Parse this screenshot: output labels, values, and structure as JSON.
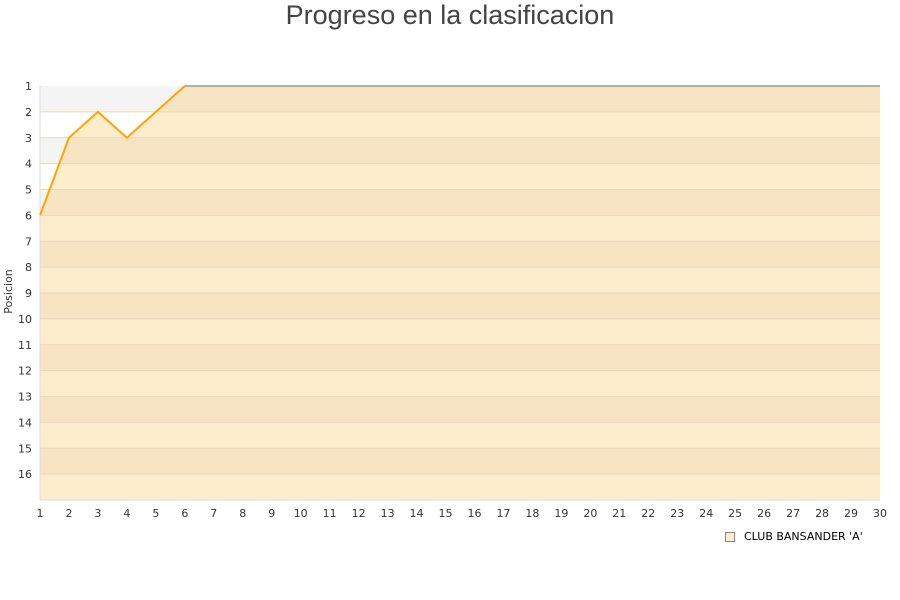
{
  "chart_data": {
    "type": "area",
    "title": "Progreso en la clasificacion",
    "ylabel": "Posicion",
    "xlabel": "",
    "x_ticks": [
      1,
      2,
      3,
      4,
      5,
      6,
      7,
      8,
      9,
      10,
      11,
      12,
      13,
      14,
      15,
      16,
      17,
      18,
      19,
      20,
      21,
      22,
      23,
      24,
      25,
      26,
      27,
      28,
      29,
      30
    ],
    "y_ticks": [
      1,
      2,
      3,
      4,
      5,
      6,
      7,
      8,
      9,
      10,
      11,
      12,
      13,
      14,
      15,
      16
    ],
    "ylim": [
      1,
      17
    ],
    "y_inverted": true,
    "xlim": [
      1,
      30
    ],
    "series": [
      {
        "name": "CLUB BANSANDER 'A'",
        "x": [
          1,
          2,
          3,
          4,
          5,
          6
        ],
        "y": [
          6,
          3,
          2,
          3,
          2,
          1
        ],
        "color": "#ffa500"
      }
    ],
    "legend_placement": "bottom-right",
    "colors": {
      "fill_dark": "#f6e4c3",
      "fill_light": "#feedcc",
      "bg_gray": "#f4f4f4",
      "line": "#ffa500"
    }
  }
}
